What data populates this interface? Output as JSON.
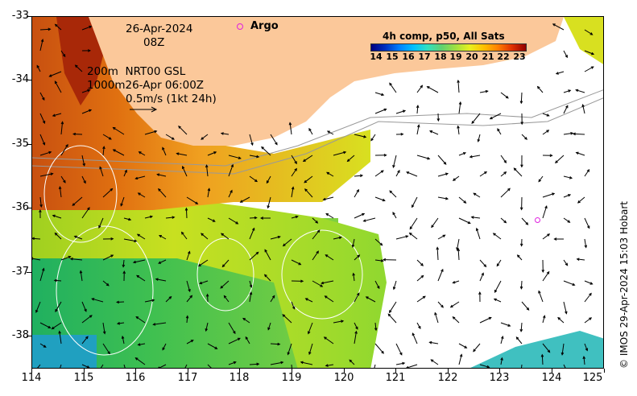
{
  "map": {
    "lon_range": [
      114,
      125
    ],
    "lat_range": [
      -38.5,
      -33
    ],
    "x_ticks": [
      "114",
      "115",
      "116",
      "117",
      "118",
      "119",
      "120",
      "121",
      "122",
      "123",
      "124",
      "125"
    ],
    "y_ticks": [
      "-33",
      "-34",
      "-35",
      "-36",
      "-37",
      "-38"
    ],
    "colors": {
      "land": "#fbc89a",
      "no_data": "#ffffff",
      "contour": "#ffffff",
      "shelf_line": "#999999",
      "argo": "#e020e0"
    }
  },
  "annotations": {
    "date": "26-Apr-2024",
    "hour": "08Z",
    "depth_200": "200m  NRT00 GSL",
    "depth_1000": "1000m26-Apr 06:00Z",
    "speed_ref": "0.5m/s (1kt 24h)"
  },
  "argo": {
    "label": "Argo"
  },
  "colorbar": {
    "title": "4h comp, p50, All Sats",
    "labels": [
      "14",
      "15",
      "16",
      "17",
      "18",
      "19",
      "20",
      "21",
      "22",
      "23"
    ]
  },
  "credit": "© IMOS 29-Apr-2024 15:03 Hobart"
}
